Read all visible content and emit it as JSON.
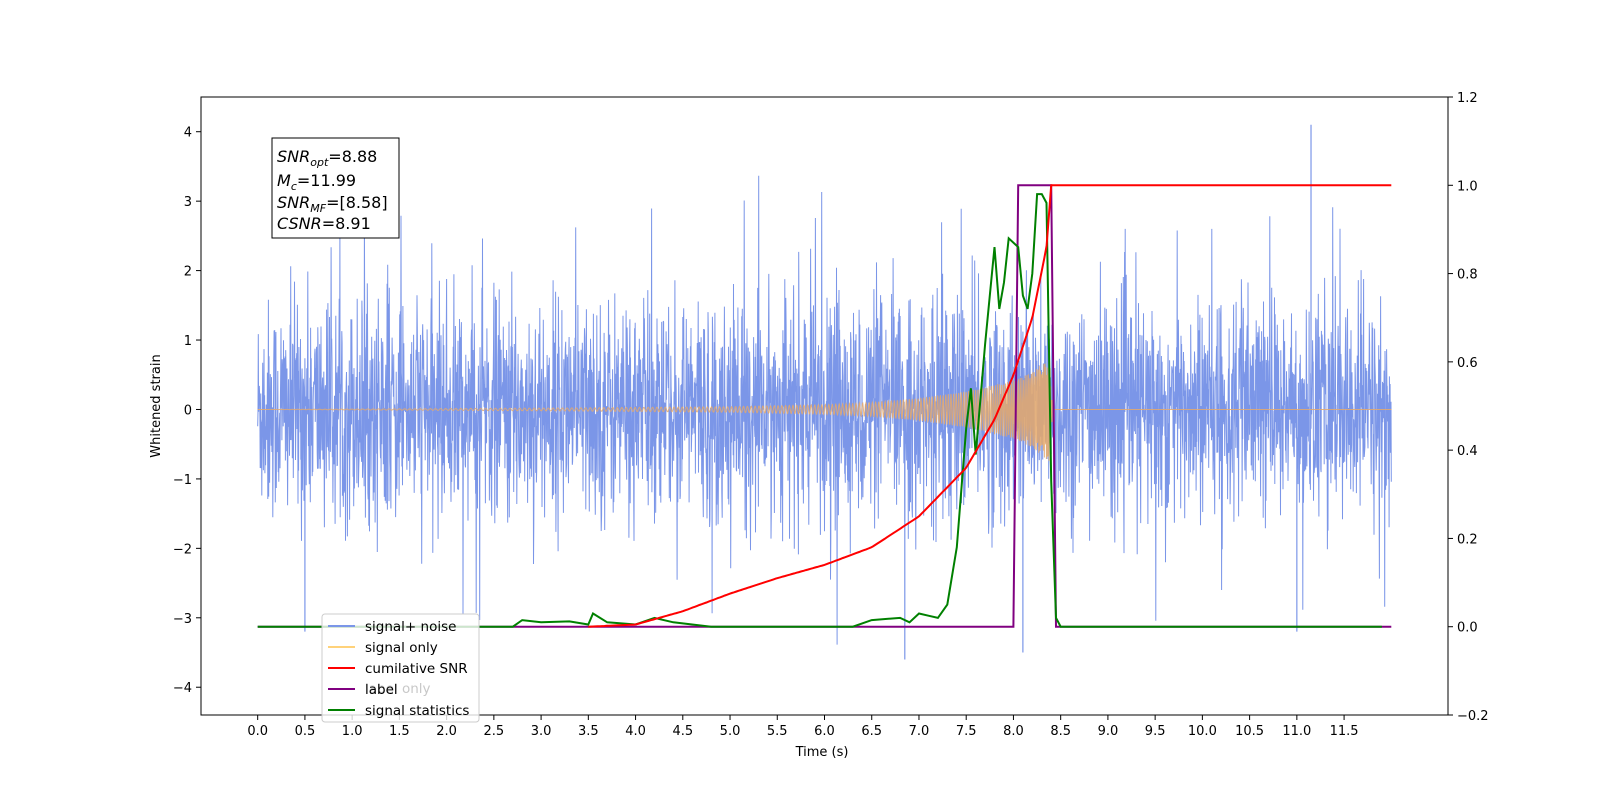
{
  "chart_data": {
    "type": "line",
    "xlabel": "Time (s)",
    "ylabel": "Whitened strain",
    "xlim": [
      -0.6,
      12.6
    ],
    "ylim": [
      -4.4,
      4.5
    ],
    "y2lim": [
      -0.2,
      1.2
    ],
    "x_ticks": [
      "0.0",
      "0.5",
      "1.0",
      "1.5",
      "2.0",
      "2.5",
      "3.0",
      "3.5",
      "4.0",
      "4.5",
      "5.0",
      "5.5",
      "6.0",
      "6.5",
      "7.0",
      "7.5",
      "8.0",
      "8.5",
      "9.0",
      "9.5",
      "10.0",
      "10.5",
      "11.0",
      "11.5"
    ],
    "y_ticks": [
      "−4",
      "−3",
      "−2",
      "−1",
      "0",
      "1",
      "2",
      "3",
      "4"
    ],
    "y2_ticks": [
      "−0.2",
      "0.0",
      "0.2",
      "0.4",
      "0.6",
      "0.8",
      "1.0",
      "1.2"
    ],
    "colors": {
      "noise": "#7b96e8",
      "signal": "#e6a96a",
      "snr": "#ff0000",
      "label": "#800080",
      "stat": "#008000"
    },
    "annotations": {
      "snr_opt": {
        "prefix": "SNR",
        "sub": "opt",
        "value": "=8.88"
      },
      "mc": {
        "prefix": "M",
        "sub": "c",
        "value": "=11.99"
      },
      "snr_mf": {
        "prefix": "SNR",
        "sub": "MF",
        "value": "=[8.58]"
      },
      "csnr": {
        "prefix": "CSNR",
        "value": "=8.91"
      }
    },
    "legend": {
      "position": "lower-left",
      "entries": [
        "signal+ noise",
        "signal only",
        "cumilative SNR",
        "label",
        "signal statistics"
      ],
      "hidden_text": "label only"
    },
    "series": [
      {
        "name": "signal+ noise",
        "axis": "left",
        "description": "whitened noise fluctuating between about -2.5 and 2.5 over 0–12 s, occasional spikes to 4.1 and -3.6",
        "envelope": [
          -2.5,
          2.5
        ]
      },
      {
        "name": "signal only",
        "axis": "left",
        "description": "chirp with amplitude growing toward merger near 8.4 s",
        "x": [
          0,
          3,
          5,
          6,
          6.5,
          7,
          7.5,
          8,
          8.2,
          8.38,
          8.42,
          12
        ],
        "amplitude": [
          0.0,
          0.02,
          0.04,
          0.07,
          0.1,
          0.16,
          0.26,
          0.42,
          0.55,
          0.75,
          0.0,
          0.0
        ]
      },
      {
        "name": "cumilative SNR",
        "axis": "right",
        "x": [
          3.5,
          4.0,
          4.5,
          5.0,
          5.5,
          6.0,
          6.5,
          7.0,
          7.5,
          7.8,
          8.0,
          8.2,
          8.35,
          8.4,
          12.0
        ],
        "y": [
          0.0,
          0.005,
          0.035,
          0.075,
          0.11,
          0.14,
          0.18,
          0.25,
          0.36,
          0.47,
          0.57,
          0.7,
          0.86,
          1.0,
          1.0
        ]
      },
      {
        "name": "label",
        "axis": "right",
        "x": [
          0.0,
          8.0,
          8.05,
          8.4,
          8.45,
          12.0
        ],
        "y": [
          0.0,
          0.0,
          1.0,
          1.0,
          0.0,
          0.0
        ]
      },
      {
        "name": "signal statistics",
        "axis": "right",
        "x": [
          0.0,
          2.7,
          2.8,
          3.0,
          3.3,
          3.5,
          3.55,
          3.7,
          4.0,
          4.2,
          4.4,
          4.8,
          6.3,
          6.5,
          6.8,
          6.9,
          7.0,
          7.1,
          7.2,
          7.3,
          7.4,
          7.5,
          7.55,
          7.6,
          7.7,
          7.8,
          7.85,
          7.9,
          7.95,
          8.05,
          8.1,
          8.15,
          8.2,
          8.25,
          8.3,
          8.35,
          8.4,
          8.45,
          8.5,
          11.9
        ],
        "y": [
          0.0,
          0.0,
          0.015,
          0.01,
          0.012,
          0.005,
          0.03,
          0.01,
          0.005,
          0.02,
          0.01,
          0.0,
          0.0,
          0.015,
          0.02,
          0.01,
          0.03,
          0.025,
          0.02,
          0.05,
          0.18,
          0.45,
          0.54,
          0.39,
          0.64,
          0.86,
          0.72,
          0.78,
          0.88,
          0.86,
          0.75,
          0.72,
          0.8,
          0.98,
          0.98,
          0.96,
          0.33,
          0.02,
          0.0,
          0.0
        ]
      }
    ]
  }
}
